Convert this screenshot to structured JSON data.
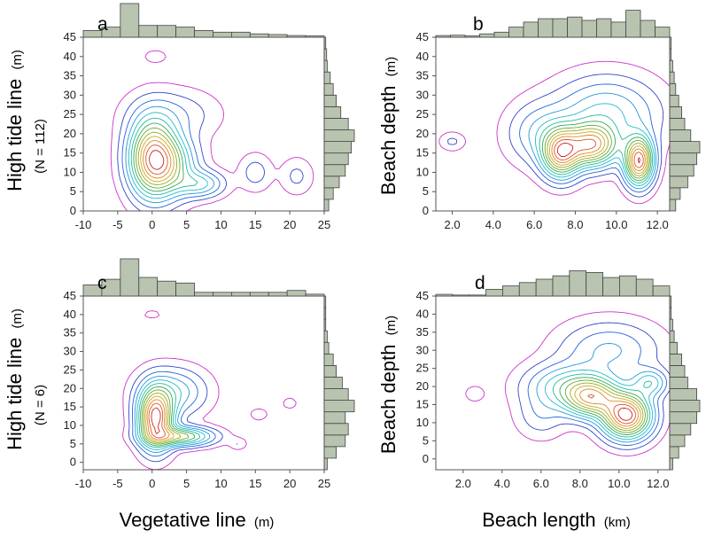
{
  "figure": {
    "x_titles": {
      "left": "Vegetative line",
      "left_unit": "(m)",
      "right": "Beach length",
      "right_unit": "(km)"
    },
    "y_titles": {
      "top_left": "High tide line",
      "top_left_unit": "(m)",
      "top_left_n": "(N = 112)",
      "bottom_left": "High tide line",
      "bottom_left_unit": "(m)",
      "bottom_left_n": "(N = 6)",
      "right": "Beach depth",
      "right_unit": "(m)"
    }
  },
  "chart_data": [
    {
      "panel": "a",
      "type": "contour-density",
      "xlabel": "Vegetative line (m)",
      "ylabel": "High tide line (m)",
      "sample_size": "N = 112",
      "xlim": [
        -10,
        25
      ],
      "ylim": [
        0,
        45
      ],
      "xticks": [
        "-10",
        "-5",
        "0",
        "5",
        "10",
        "15",
        "20",
        "25"
      ],
      "yticks": [
        "0",
        "5",
        "10",
        "15",
        "20",
        "25",
        "30",
        "35",
        "40",
        "45"
      ],
      "density_centers": [
        {
          "x": 0,
          "y": 14,
          "sx": 2.2,
          "sy": 6.5,
          "w": 1.0
        },
        {
          "x": 2.5,
          "y": 12,
          "sx": 2.5,
          "sy": 5,
          "w": 0.55
        },
        {
          "x": 7,
          "y": 7,
          "sx": 2.2,
          "sy": 2.2,
          "w": 0.35
        },
        {
          "x": 3,
          "y": 25,
          "sx": 4,
          "sy": 4,
          "w": 0.15
        },
        {
          "x": 15,
          "y": 10,
          "sx": 1.5,
          "sy": 3,
          "w": 0.12
        },
        {
          "x": 21,
          "y": 9,
          "sx": 1.5,
          "sy": 3,
          "w": 0.1
        },
        {
          "x": 0.5,
          "y": 40,
          "sx": 1,
          "sy": 1,
          "w": 0.08
        }
      ],
      "hist_x": [
        0.2,
        0.3,
        1.0,
        0.35,
        0.35,
        0.3,
        0.2,
        0.15,
        0.15,
        0.1,
        0.08,
        0.05,
        0.04
      ],
      "hist_y": [
        0.15,
        0.3,
        0.5,
        0.7,
        0.8,
        0.9,
        1.0,
        0.8,
        0.55,
        0.4,
        0.3,
        0.2,
        0.1,
        0.08,
        0.05
      ]
    },
    {
      "panel": "b",
      "type": "contour-density",
      "xlabel": "Beach length (km)",
      "ylabel": "Beach depth (m)",
      "xlim": [
        1.2,
        12.6
      ],
      "ylim": [
        0,
        45
      ],
      "xticks": [
        "2.0",
        "4.0",
        "6.0",
        "8.0",
        "10.0",
        "12.0"
      ],
      "yticks": [
        "0",
        "5",
        "10",
        "15",
        "20",
        "25",
        "30",
        "35",
        "40",
        "45"
      ],
      "density_centers": [
        {
          "x": 7.3,
          "y": 15,
          "sx": 0.6,
          "sy": 4,
          "w": 0.85
        },
        {
          "x": 8.8,
          "y": 17,
          "sx": 0.8,
          "sy": 3.5,
          "w": 0.8
        },
        {
          "x": 11.1,
          "y": 13,
          "sx": 0.45,
          "sy": 4,
          "w": 1.0
        },
        {
          "x": 9.5,
          "y": 25,
          "sx": 1.6,
          "sy": 6,
          "w": 0.3
        },
        {
          "x": 6.3,
          "y": 20,
          "sx": 1,
          "sy": 5,
          "w": 0.2
        },
        {
          "x": 2.0,
          "y": 18,
          "sx": 0.4,
          "sy": 1.5,
          "w": 0.08
        }
      ],
      "hist_x": [
        0.05,
        0.06,
        0.04,
        0.1,
        0.15,
        0.3,
        0.45,
        0.55,
        0.55,
        0.6,
        0.5,
        0.55,
        0.45,
        0.8,
        0.5,
        0.3
      ],
      "hist_y": [
        0.2,
        0.35,
        0.6,
        0.8,
        0.9,
        1.0,
        0.7,
        0.5,
        0.4,
        0.3,
        0.2,
        0.15,
        0.1,
        0.05,
        0.05
      ]
    },
    {
      "panel": "c",
      "type": "contour-density",
      "xlabel": "Vegetative line (m)",
      "ylabel": "High tide line (m)",
      "sample_size": "N = 6",
      "xlim": [
        -10,
        25
      ],
      "ylim": [
        -2,
        45
      ],
      "xticks": [
        "-10",
        "-5",
        "0",
        "5",
        "10",
        "15",
        "20",
        "25"
      ],
      "yticks": [
        "0",
        "5",
        "10",
        "15",
        "20",
        "25",
        "30",
        "35",
        "40",
        "45"
      ],
      "density_centers": [
        {
          "x": 0.5,
          "y": 12,
          "sx": 1.6,
          "sy": 5,
          "w": 1.0
        },
        {
          "x": 4,
          "y": 7,
          "sx": 3,
          "sy": 1.6,
          "w": 0.55
        },
        {
          "x": 3,
          "y": 19,
          "sx": 3,
          "sy": 4,
          "w": 0.25
        },
        {
          "x": 12.5,
          "y": 5,
          "sx": 0.8,
          "sy": 1,
          "w": 0.06
        },
        {
          "x": 15.5,
          "y": 13,
          "sx": 0.8,
          "sy": 1,
          "w": 0.06
        },
        {
          "x": 20,
          "y": 16,
          "sx": 0.7,
          "sy": 1,
          "w": 0.05
        },
        {
          "x": 0,
          "y": 40,
          "sx": 0.8,
          "sy": 0.7,
          "w": 0.05
        }
      ],
      "hist_x": [
        0.3,
        0.45,
        1.0,
        0.5,
        0.4,
        0.35,
        0.1,
        0.1,
        0.1,
        0.1,
        0.1,
        0.15,
        0.05
      ],
      "hist_y": [
        0.1,
        0.4,
        0.7,
        0.8,
        0.7,
        1.0,
        0.8,
        0.6,
        0.4,
        0.3,
        0.15,
        0.1,
        0.05,
        0.05,
        0.05
      ]
    },
    {
      "panel": "d",
      "type": "contour-density",
      "xlabel": "Beach length (km)",
      "ylabel": "Beach depth (m)",
      "xlim": [
        0.6,
        12.6
      ],
      "ylim": [
        -3,
        45
      ],
      "xticks": [
        "2.0",
        "4.0",
        "6.0",
        "8.0",
        "10.0",
        "12.0"
      ],
      "yticks": [
        "0",
        "5",
        "10",
        "15",
        "20",
        "25",
        "30",
        "35",
        "40",
        "45"
      ],
      "density_centers": [
        {
          "x": 10.4,
          "y": 12,
          "sx": 0.8,
          "sy": 4,
          "w": 1.0
        },
        {
          "x": 8.6,
          "y": 17,
          "sx": 0.9,
          "sy": 3.5,
          "w": 0.7
        },
        {
          "x": 7.2,
          "y": 20,
          "sx": 1.3,
          "sy": 4,
          "w": 0.3
        },
        {
          "x": 9.5,
          "y": 30,
          "sx": 1.6,
          "sy": 5,
          "w": 0.2
        },
        {
          "x": 11.6,
          "y": 21,
          "sx": 0.6,
          "sy": 2.5,
          "w": 0.3
        },
        {
          "x": 6,
          "y": 12,
          "sx": 0.8,
          "sy": 4,
          "w": 0.1
        },
        {
          "x": 2.6,
          "y": 18,
          "sx": 0.35,
          "sy": 1.5,
          "w": 0.05
        }
      ],
      "hist_x": [
        0.05,
        0.03,
        0.03,
        0.2,
        0.3,
        0.4,
        0.5,
        0.6,
        0.75,
        0.7,
        0.55,
        0.6,
        0.5,
        0.3
      ],
      "hist_y": [
        0.1,
        0.3,
        0.5,
        0.7,
        0.9,
        1.0,
        0.9,
        0.6,
        0.5,
        0.4,
        0.25,
        0.15,
        0.1,
        0.05,
        0.05
      ]
    }
  ]
}
